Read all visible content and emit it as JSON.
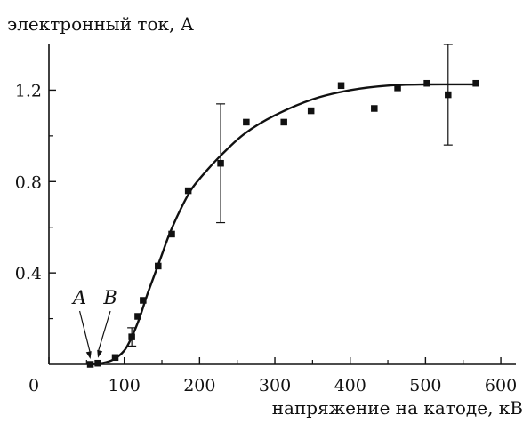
{
  "chart_data": {
    "type": "scatter",
    "ylabel": "электронный ток, А",
    "xlabel": "напряжение на катоде, кВ",
    "xlim": [
      0,
      620
    ],
    "ylim": [
      0,
      1.4
    ],
    "x_ticks": [
      0,
      100,
      200,
      300,
      400,
      500,
      600
    ],
    "x_tick_labels": [
      "0",
      "100",
      "200",
      "300",
      "400",
      "500",
      "600"
    ],
    "y_ticks": [
      0.4,
      0.8,
      1.2
    ],
    "y_tick_labels": [
      "0.4",
      "0.8",
      "1.2"
    ],
    "grid": false,
    "colors": {
      "series": "#111111"
    },
    "series": [
      {
        "type": "scatter",
        "marker": "square",
        "points": [
          {
            "x": 55,
            "y": 0.0
          },
          {
            "x": 65,
            "y": 0.005
          },
          {
            "x": 88,
            "y": 0.03
          },
          {
            "x": 110,
            "y": 0.12
          },
          {
            "x": 118,
            "y": 0.21
          },
          {
            "x": 125,
            "y": 0.28
          },
          {
            "x": 145,
            "y": 0.43
          },
          {
            "x": 163,
            "y": 0.57
          },
          {
            "x": 185,
            "y": 0.76
          },
          {
            "x": 228,
            "y": 0.88
          },
          {
            "x": 262,
            "y": 1.06
          },
          {
            "x": 312,
            "y": 1.06
          },
          {
            "x": 348,
            "y": 1.11
          },
          {
            "x": 388,
            "y": 1.22
          },
          {
            "x": 432,
            "y": 1.12
          },
          {
            "x": 463,
            "y": 1.21
          },
          {
            "x": 502,
            "y": 1.23
          },
          {
            "x": 530,
            "y": 1.18
          },
          {
            "x": 567,
            "y": 1.23
          }
        ]
      },
      {
        "type": "line",
        "points": [
          {
            "x": 55,
            "y": 0.0
          },
          {
            "x": 70,
            "y": 0.005
          },
          {
            "x": 85,
            "y": 0.02
          },
          {
            "x": 100,
            "y": 0.06
          },
          {
            "x": 110,
            "y": 0.12
          },
          {
            "x": 120,
            "y": 0.2
          },
          {
            "x": 130,
            "y": 0.3
          },
          {
            "x": 140,
            "y": 0.39
          },
          {
            "x": 150,
            "y": 0.48
          },
          {
            "x": 160,
            "y": 0.57
          },
          {
            "x": 175,
            "y": 0.68
          },
          {
            "x": 190,
            "y": 0.77
          },
          {
            "x": 210,
            "y": 0.85
          },
          {
            "x": 230,
            "y": 0.92
          },
          {
            "x": 260,
            "y": 1.01
          },
          {
            "x": 300,
            "y": 1.09
          },
          {
            "x": 350,
            "y": 1.16
          },
          {
            "x": 400,
            "y": 1.2
          },
          {
            "x": 450,
            "y": 1.22
          },
          {
            "x": 500,
            "y": 1.225
          },
          {
            "x": 570,
            "y": 1.225
          }
        ]
      }
    ],
    "error_bars": [
      {
        "x": 110,
        "y": 0.12,
        "low": 0.08,
        "high": 0.16
      },
      {
        "x": 228,
        "y": 0.88,
        "low": 0.62,
        "high": 1.14
      },
      {
        "x": 530,
        "y": 1.18,
        "low": 0.96,
        "high": 1.4
      }
    ],
    "annotations": [
      {
        "label": "A",
        "x": 55,
        "y": 0.0
      },
      {
        "label": "B",
        "x": 65,
        "y": 0.005
      }
    ]
  }
}
